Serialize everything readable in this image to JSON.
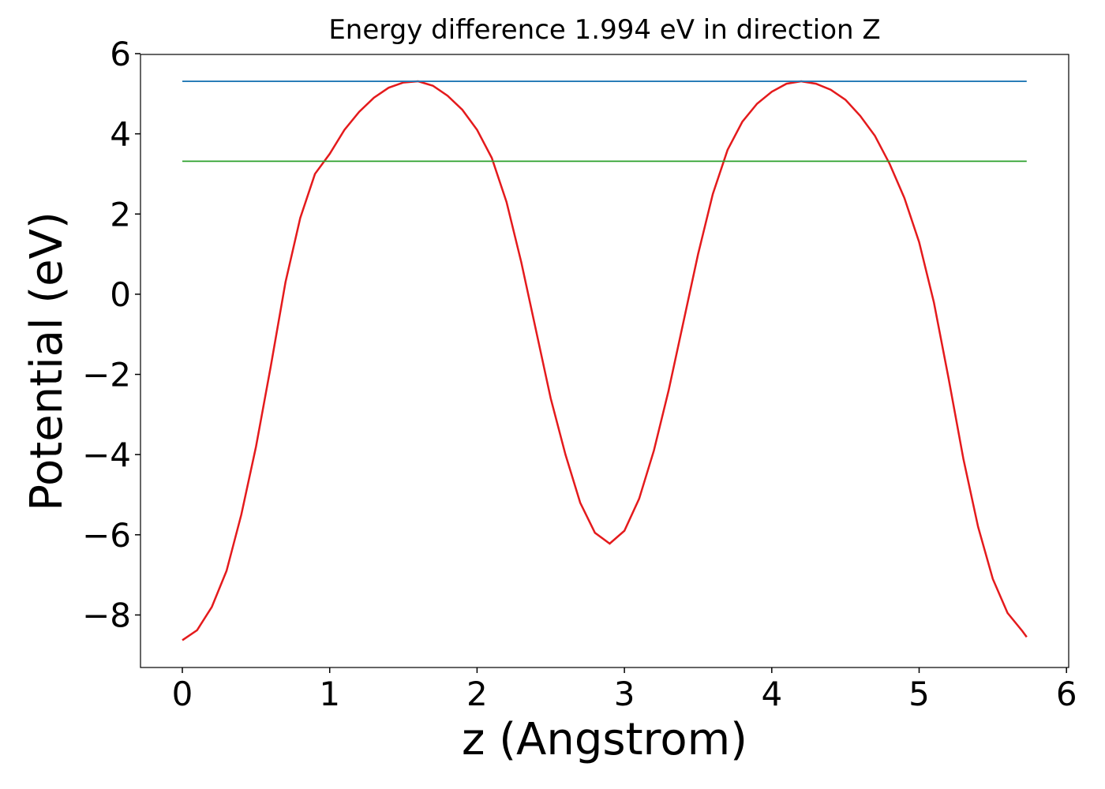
{
  "chart_data": {
    "type": "line",
    "title": "Energy difference 1.994 eV in direction Z",
    "xlabel": "z (Angstrom)",
    "ylabel": "Potential (eV)",
    "xlim": [
      -0.284,
      6.015
    ],
    "ylim": [
      -9.31,
      5.98
    ],
    "xticks": [
      0,
      1,
      2,
      3,
      4,
      5,
      6
    ],
    "yticks": [
      {
        "value": -8,
        "label": "−8"
      },
      {
        "value": -6,
        "label": "−6"
      },
      {
        "value": -4,
        "label": "−4"
      },
      {
        "value": -2,
        "label": "−2"
      },
      0,
      2,
      4,
      6
    ],
    "series": [
      {
        "color": "#e41a1c",
        "x": [
          0,
          0.1,
          0.2,
          0.3,
          0.4,
          0.5,
          0.6,
          0.7,
          0.8,
          0.9,
          1.0,
          1.1,
          1.2,
          1.3,
          1.4,
          1.5,
          1.6,
          1.7,
          1.8,
          1.9,
          2.0,
          2.1,
          2.2,
          2.3,
          2.4,
          2.5,
          2.6,
          2.7,
          2.8,
          2.9,
          3.0,
          3.1,
          3.2,
          3.3,
          3.4,
          3.5,
          3.6,
          3.7,
          3.8,
          3.9,
          4.0,
          4.1,
          4.2,
          4.3,
          4.4,
          4.5,
          4.6,
          4.7,
          4.8,
          4.9,
          5.0,
          5.1,
          5.2,
          5.3,
          5.4,
          5.5,
          5.6,
          5.7,
          5.73
        ],
        "values": [
          -8.63,
          -8.38,
          -7.8,
          -6.9,
          -5.5,
          -3.8,
          -1.8,
          0.3,
          1.9,
          3.0,
          3.5,
          4.1,
          4.55,
          4.9,
          5.15,
          5.28,
          5.31,
          5.2,
          4.95,
          4.6,
          4.1,
          3.4,
          2.3,
          0.8,
          -0.9,
          -2.6,
          -4.0,
          -5.2,
          -5.95,
          -6.22,
          -5.9,
          -5.1,
          -3.9,
          -2.4,
          -0.7,
          1.0,
          2.5,
          3.6,
          4.3,
          4.75,
          5.05,
          5.25,
          5.31,
          5.25,
          5.1,
          4.85,
          4.45,
          3.95,
          3.25,
          2.4,
          1.3,
          -0.2,
          -2.1,
          -4.1,
          -5.8,
          -7.1,
          -7.95,
          -8.4,
          -8.55
        ]
      },
      {
        "color": "#1f77b4",
        "x": [
          0,
          5.73
        ],
        "values": [
          5.31,
          5.31
        ]
      },
      {
        "color": "#2ca02c",
        "x": [
          0,
          5.73
        ],
        "values": [
          3.316,
          3.316
        ]
      }
    ]
  }
}
